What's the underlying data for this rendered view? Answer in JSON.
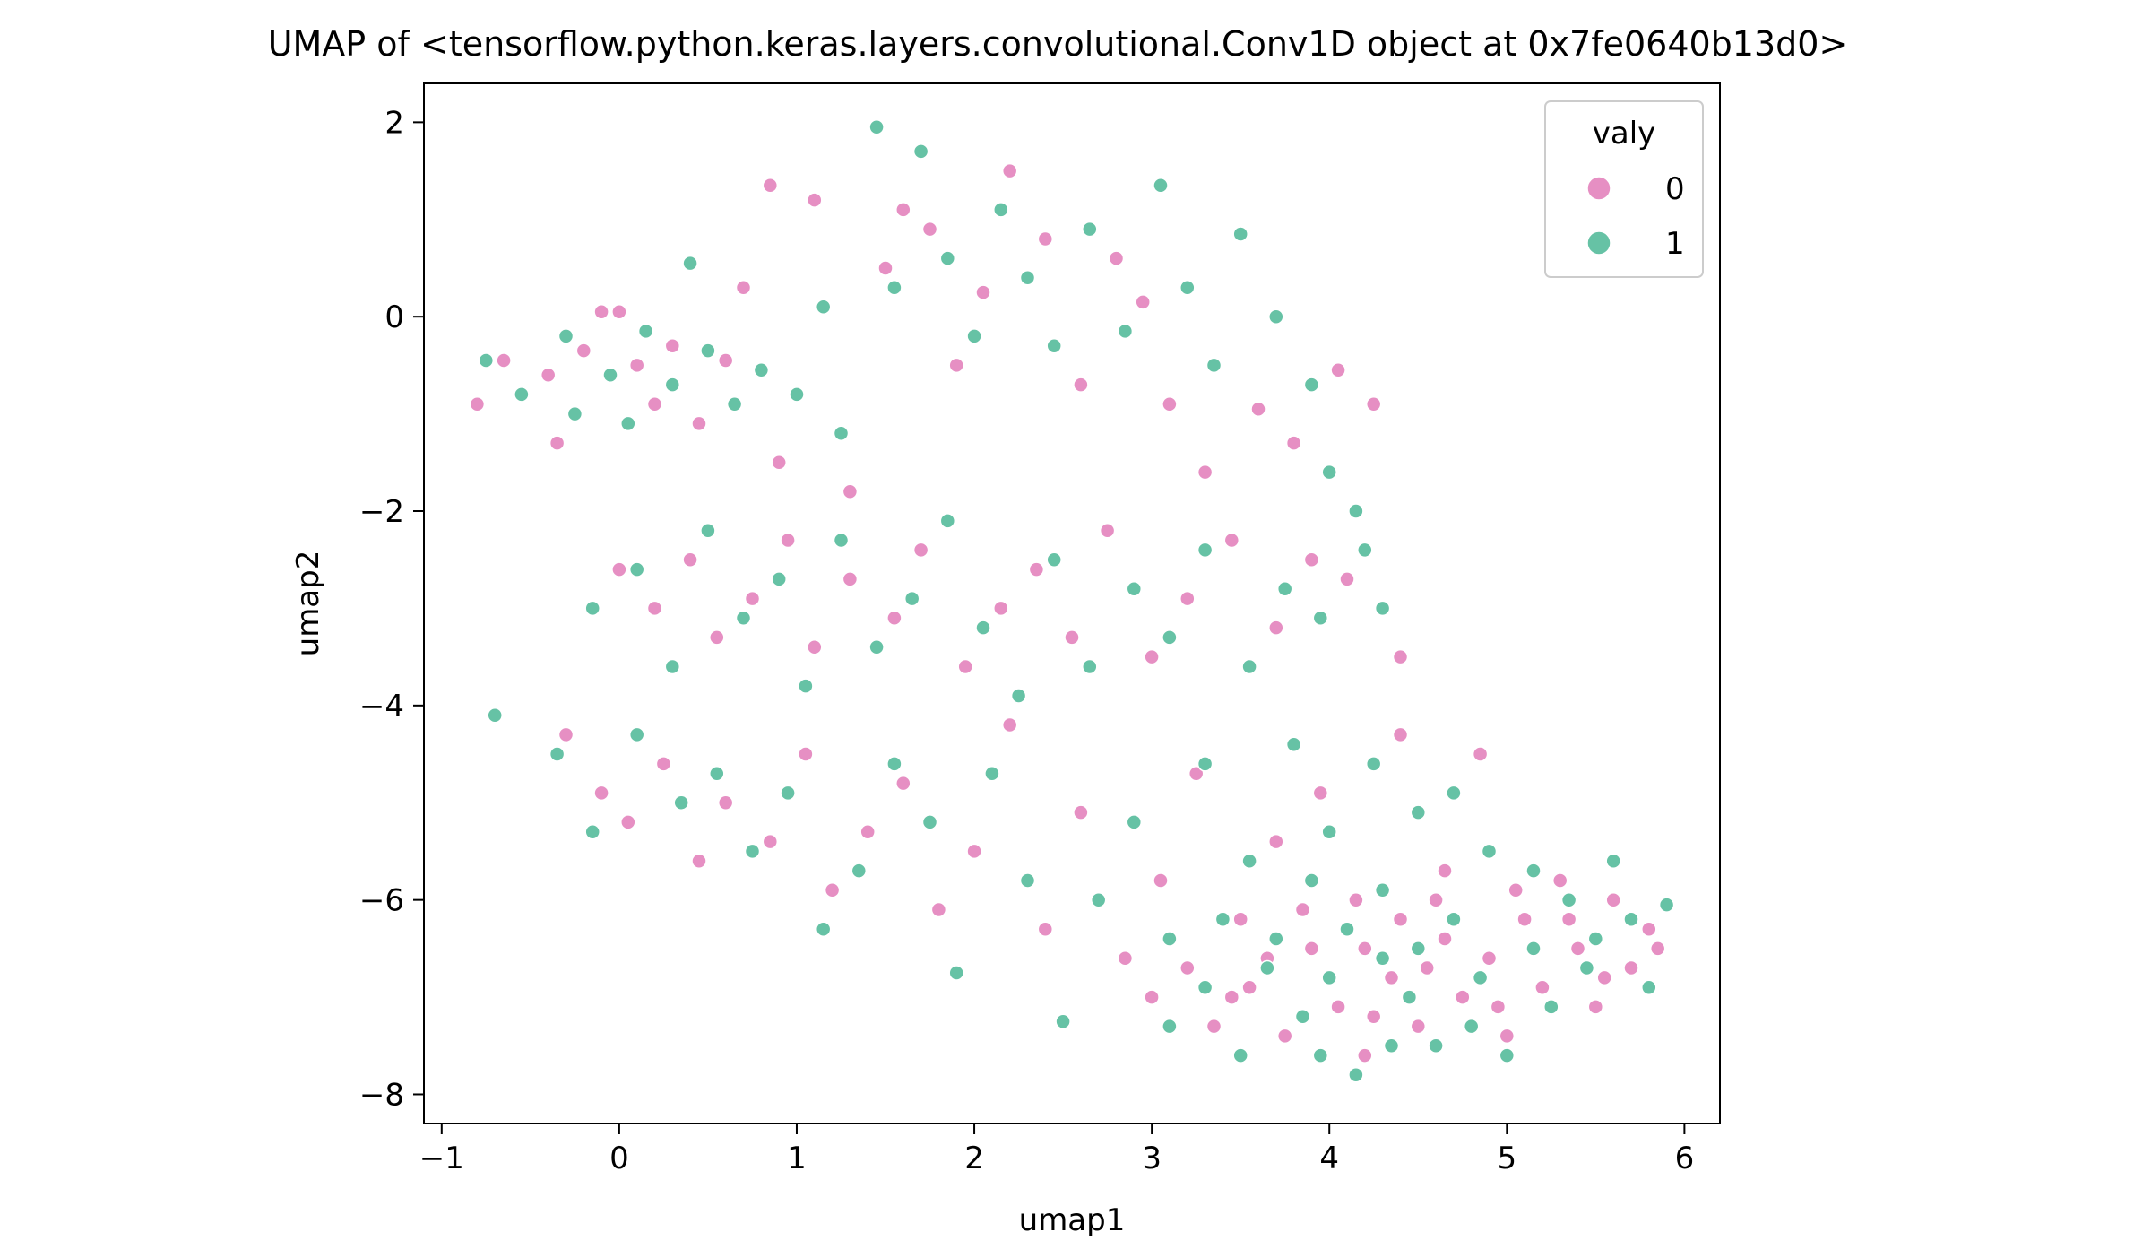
{
  "chart_data": {
    "type": "scatter",
    "title": "UMAP of <tensorflow.python.keras.layers.convolutional.Conv1D object at 0x7fe0640b13d0>",
    "xlabel": "umap1",
    "ylabel": "umap2",
    "xlim": [
      -1.1,
      6.2
    ],
    "ylim": [
      -8.3,
      2.4
    ],
    "xticks": [
      -1,
      0,
      1,
      2,
      3,
      4,
      5,
      6
    ],
    "xtick_labels": [
      "−1",
      "0",
      "1",
      "2",
      "3",
      "4",
      "5",
      "6"
    ],
    "yticks": [
      -8,
      -6,
      -4,
      -2,
      0,
      2
    ],
    "ytick_labels": [
      "−8",
      "−6",
      "−4",
      "−2",
      "0",
      "2"
    ],
    "grid": false,
    "legend": {
      "title": "valy",
      "position": "top-right",
      "entries": [
        "0",
        "1"
      ]
    },
    "series": [
      {
        "name": "0",
        "color": "#e68fc3",
        "points": [
          [
            -0.8,
            -0.9
          ],
          [
            -0.65,
            -0.45
          ],
          [
            -0.4,
            -0.6
          ],
          [
            -0.35,
            -1.3
          ],
          [
            -0.2,
            -0.35
          ],
          [
            -0.1,
            0.05
          ],
          [
            0.0,
            0.05
          ],
          [
            0.1,
            -0.5
          ],
          [
            0.2,
            -0.9
          ],
          [
            0.3,
            -0.3
          ],
          [
            0.45,
            -1.1
          ],
          [
            0.6,
            -0.45
          ],
          [
            0.7,
            0.3
          ],
          [
            0.85,
            1.35
          ],
          [
            0.9,
            -1.5
          ],
          [
            1.1,
            1.2
          ],
          [
            1.3,
            -1.8
          ],
          [
            1.5,
            0.5
          ],
          [
            1.6,
            1.1
          ],
          [
            1.75,
            0.9
          ],
          [
            1.9,
            -0.5
          ],
          [
            2.05,
            0.25
          ],
          [
            2.2,
            1.5
          ],
          [
            2.4,
            0.8
          ],
          [
            2.6,
            -0.7
          ],
          [
            2.8,
            0.6
          ],
          [
            2.95,
            0.15
          ],
          [
            3.1,
            -0.9
          ],
          [
            3.3,
            -1.6
          ],
          [
            3.6,
            -0.95
          ],
          [
            3.8,
            -1.3
          ],
          [
            4.05,
            -0.55
          ],
          [
            4.25,
            -0.9
          ],
          [
            0.0,
            -2.6
          ],
          [
            0.2,
            -3.0
          ],
          [
            0.4,
            -2.5
          ],
          [
            0.55,
            -3.3
          ],
          [
            0.75,
            -2.9
          ],
          [
            0.95,
            -2.3
          ],
          [
            1.1,
            -3.4
          ],
          [
            1.3,
            -2.7
          ],
          [
            1.55,
            -3.1
          ],
          [
            1.7,
            -2.4
          ],
          [
            1.95,
            -3.6
          ],
          [
            2.15,
            -3.0
          ],
          [
            2.35,
            -2.6
          ],
          [
            2.55,
            -3.3
          ],
          [
            2.75,
            -2.2
          ],
          [
            3.0,
            -3.5
          ],
          [
            3.2,
            -2.9
          ],
          [
            3.45,
            -2.3
          ],
          [
            3.7,
            -3.2
          ],
          [
            3.9,
            -2.5
          ],
          [
            4.1,
            -2.7
          ],
          [
            4.4,
            -3.5
          ],
          [
            -0.3,
            -4.3
          ],
          [
            -0.1,
            -4.9
          ],
          [
            0.05,
            -5.2
          ],
          [
            0.25,
            -4.6
          ],
          [
            0.45,
            -5.6
          ],
          [
            0.6,
            -5.0
          ],
          [
            0.85,
            -5.4
          ],
          [
            1.05,
            -4.5
          ],
          [
            1.2,
            -5.9
          ],
          [
            1.4,
            -5.3
          ],
          [
            1.6,
            -4.8
          ],
          [
            1.8,
            -6.1
          ],
          [
            2.0,
            -5.5
          ],
          [
            2.2,
            -4.2
          ],
          [
            2.4,
            -6.3
          ],
          [
            2.6,
            -5.1
          ],
          [
            2.85,
            -6.6
          ],
          [
            3.05,
            -5.8
          ],
          [
            3.25,
            -4.7
          ],
          [
            3.5,
            -6.2
          ],
          [
            3.7,
            -5.4
          ],
          [
            3.95,
            -4.9
          ],
          [
            4.15,
            -6.0
          ],
          [
            4.4,
            -4.3
          ],
          [
            4.65,
            -5.7
          ],
          [
            4.85,
            -4.5
          ],
          [
            3.0,
            -7.0
          ],
          [
            3.2,
            -6.7
          ],
          [
            3.35,
            -7.3
          ],
          [
            3.55,
            -6.9
          ],
          [
            3.75,
            -7.4
          ],
          [
            3.9,
            -6.5
          ],
          [
            4.05,
            -7.1
          ],
          [
            4.2,
            -7.6
          ],
          [
            4.35,
            -6.8
          ],
          [
            4.5,
            -7.3
          ],
          [
            4.65,
            -6.4
          ],
          [
            4.75,
            -7.0
          ],
          [
            4.9,
            -6.6
          ],
          [
            5.0,
            -7.4
          ],
          [
            5.1,
            -6.2
          ],
          [
            5.2,
            -6.9
          ],
          [
            5.3,
            -5.8
          ],
          [
            5.4,
            -6.5
          ],
          [
            5.5,
            -7.1
          ],
          [
            5.6,
            -6.0
          ],
          [
            5.7,
            -6.7
          ],
          [
            5.8,
            -6.3
          ],
          [
            5.85,
            -6.5
          ],
          [
            4.6,
            -6.0
          ],
          [
            4.4,
            -6.2
          ],
          [
            4.2,
            -6.5
          ],
          [
            3.85,
            -6.1
          ],
          [
            3.65,
            -6.6
          ],
          [
            3.45,
            -7.0
          ],
          [
            5.05,
            -5.9
          ],
          [
            5.35,
            -6.2
          ],
          [
            5.55,
            -6.8
          ],
          [
            4.95,
            -7.1
          ],
          [
            4.55,
            -6.7
          ],
          [
            4.25,
            -7.2
          ]
        ]
      },
      {
        "name": "1",
        "color": "#66c2a5",
        "points": [
          [
            -0.75,
            -0.45
          ],
          [
            -0.55,
            -0.8
          ],
          [
            -0.3,
            -0.2
          ],
          [
            -0.25,
            -1.0
          ],
          [
            -0.05,
            -0.6
          ],
          [
            0.05,
            -1.1
          ],
          [
            0.15,
            -0.15
          ],
          [
            0.3,
            -0.7
          ],
          [
            0.4,
            0.55
          ],
          [
            0.5,
            -0.35
          ],
          [
            0.65,
            -0.9
          ],
          [
            0.8,
            -0.55
          ],
          [
            1.0,
            -0.8
          ],
          [
            1.15,
            0.1
          ],
          [
            1.25,
            -1.2
          ],
          [
            1.45,
            1.95
          ],
          [
            1.55,
            0.3
          ],
          [
            1.7,
            1.7
          ],
          [
            1.85,
            0.6
          ],
          [
            2.0,
            -0.2
          ],
          [
            2.15,
            1.1
          ],
          [
            2.3,
            0.4
          ],
          [
            2.45,
            -0.3
          ],
          [
            2.65,
            0.9
          ],
          [
            2.85,
            -0.15
          ],
          [
            3.05,
            1.35
          ],
          [
            3.2,
            0.3
          ],
          [
            3.35,
            -0.5
          ],
          [
            3.5,
            0.85
          ],
          [
            3.7,
            0.0
          ],
          [
            3.9,
            -0.7
          ],
          [
            4.0,
            -1.6
          ],
          [
            4.15,
            -2.0
          ],
          [
            -0.15,
            -3.0
          ],
          [
            0.1,
            -2.6
          ],
          [
            0.3,
            -3.6
          ],
          [
            0.5,
            -2.2
          ],
          [
            0.7,
            -3.1
          ],
          [
            0.9,
            -2.7
          ],
          [
            1.05,
            -3.8
          ],
          [
            1.25,
            -2.3
          ],
          [
            1.45,
            -3.4
          ],
          [
            1.65,
            -2.9
          ],
          [
            1.85,
            -2.1
          ],
          [
            2.05,
            -3.2
          ],
          [
            2.25,
            -3.9
          ],
          [
            2.45,
            -2.5
          ],
          [
            2.65,
            -3.6
          ],
          [
            2.9,
            -2.8
          ],
          [
            3.1,
            -3.3
          ],
          [
            3.3,
            -2.4
          ],
          [
            3.55,
            -3.6
          ],
          [
            3.75,
            -2.8
          ],
          [
            3.95,
            -3.1
          ],
          [
            4.2,
            -2.4
          ],
          [
            4.3,
            -3.0
          ],
          [
            -0.7,
            -4.1
          ],
          [
            -0.35,
            -4.5
          ],
          [
            -0.15,
            -5.3
          ],
          [
            0.1,
            -4.3
          ],
          [
            0.35,
            -5.0
          ],
          [
            0.55,
            -4.7
          ],
          [
            0.75,
            -5.5
          ],
          [
            0.95,
            -4.9
          ],
          [
            1.15,
            -6.3
          ],
          [
            1.35,
            -5.7
          ],
          [
            1.55,
            -4.6
          ],
          [
            1.75,
            -5.2
          ],
          [
            1.9,
            -6.75
          ],
          [
            2.1,
            -4.7
          ],
          [
            2.3,
            -5.8
          ],
          [
            2.5,
            -7.25
          ],
          [
            2.7,
            -6.0
          ],
          [
            2.9,
            -5.2
          ],
          [
            3.1,
            -6.4
          ],
          [
            3.3,
            -4.6
          ],
          [
            3.55,
            -5.6
          ],
          [
            3.8,
            -4.4
          ],
          [
            4.0,
            -5.3
          ],
          [
            4.25,
            -4.6
          ],
          [
            4.5,
            -5.1
          ],
          [
            4.7,
            -4.9
          ],
          [
            4.9,
            -5.5
          ],
          [
            3.1,
            -7.3
          ],
          [
            3.3,
            -6.9
          ],
          [
            3.5,
            -7.6
          ],
          [
            3.65,
            -6.7
          ],
          [
            3.85,
            -7.2
          ],
          [
            4.0,
            -6.8
          ],
          [
            4.15,
            -7.8
          ],
          [
            4.3,
            -6.6
          ],
          [
            4.45,
            -7.0
          ],
          [
            4.6,
            -7.5
          ],
          [
            4.7,
            -6.2
          ],
          [
            4.85,
            -6.8
          ],
          [
            5.0,
            -7.6
          ],
          [
            5.15,
            -6.5
          ],
          [
            5.25,
            -7.1
          ],
          [
            5.35,
            -6.0
          ],
          [
            5.45,
            -6.7
          ],
          [
            5.6,
            -5.6
          ],
          [
            5.7,
            -6.2
          ],
          [
            5.8,
            -6.9
          ],
          [
            5.9,
            -6.05
          ],
          [
            4.5,
            -6.5
          ],
          [
            4.3,
            -5.9
          ],
          [
            4.1,
            -6.3
          ],
          [
            3.9,
            -5.8
          ],
          [
            3.7,
            -6.4
          ],
          [
            3.4,
            -6.2
          ],
          [
            5.15,
            -5.7
          ],
          [
            5.5,
            -6.4
          ],
          [
            4.8,
            -7.3
          ],
          [
            4.35,
            -7.5
          ],
          [
            3.95,
            -7.6
          ]
        ]
      }
    ]
  }
}
